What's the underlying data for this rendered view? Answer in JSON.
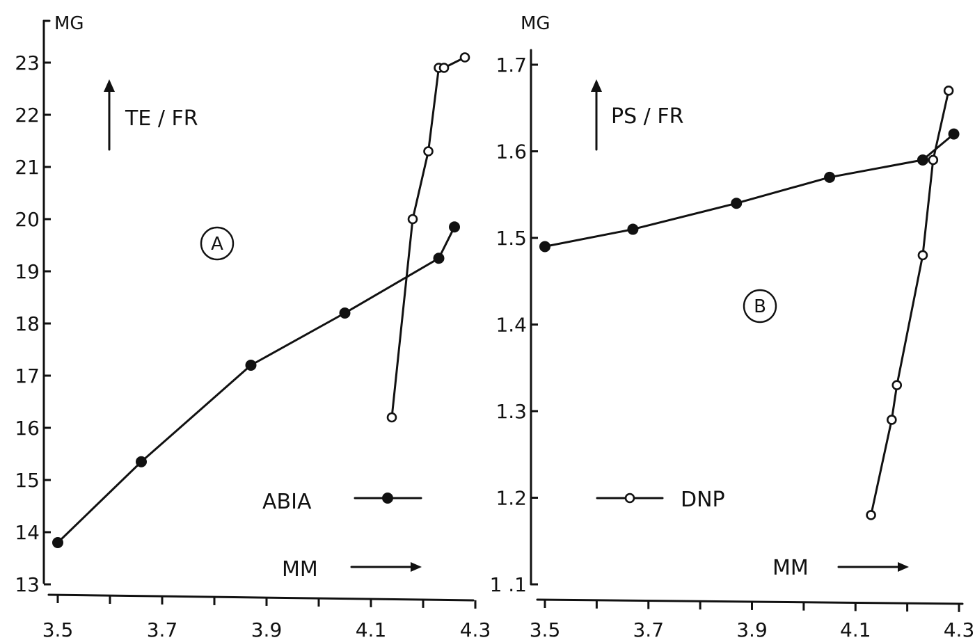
{
  "chart_data": [
    {
      "type": "line",
      "panel_label": "A",
      "y_unit_label": "MG",
      "ratio_label": "TE / FR",
      "x_arrow_label": "MM",
      "xlim": [
        3.5,
        4.3
      ],
      "ylim": [
        13,
        23
      ],
      "x_ticks": [
        3.5,
        3.6,
        3.7,
        3.8,
        3.9,
        4.0,
        4.1,
        4.2,
        4.3
      ],
      "x_tick_labels": [
        "3.5",
        "",
        "3.7",
        "",
        "3.9",
        "",
        "4.1",
        "",
        "4.3"
      ],
      "y_ticks": [
        13,
        14,
        15,
        16,
        17,
        18,
        19,
        20,
        21,
        22,
        23
      ],
      "y_tick_labels": [
        "13",
        "14",
        "15",
        "16",
        "17",
        "18",
        "19",
        "20",
        "21",
        "22",
        "23"
      ],
      "legend": {
        "label": "ABIA",
        "marker": "filled",
        "position": "lower-right"
      },
      "series": [
        {
          "name": "ABIA",
          "marker": "filled",
          "x": [
            3.5,
            3.66,
            3.87,
            4.05,
            4.23,
            4.26
          ],
          "y": [
            13.8,
            15.35,
            17.2,
            18.2,
            19.25,
            19.85
          ]
        },
        {
          "marker": "open",
          "x": [
            4.14,
            4.18,
            4.21,
            4.23,
            4.24,
            4.28
          ],
          "y": [
            16.2,
            20.0,
            21.3,
            22.9,
            22.9,
            23.1
          ]
        }
      ]
    },
    {
      "type": "line",
      "panel_label": "B",
      "y_unit_label": "MG",
      "ratio_label": "PS / FR",
      "x_arrow_label": "MM",
      "xlim": [
        3.5,
        4.3
      ],
      "ylim": [
        1.1,
        1.7
      ],
      "x_ticks": [
        3.5,
        3.6,
        3.7,
        3.8,
        3.9,
        4.0,
        4.1,
        4.2,
        4.3
      ],
      "x_tick_labels": [
        "3.5",
        "",
        "3.7",
        "",
        "3.9",
        "",
        "4.1",
        "",
        "4.3"
      ],
      "y_ticks": [
        1.1,
        1.2,
        1.3,
        1.4,
        1.5,
        1.6,
        1.7
      ],
      "y_tick_labels": [
        "1 .1",
        "1.2",
        "1.3",
        "1.4",
        "1.5",
        "1.6",
        "1.7"
      ],
      "legend": {
        "label": "DNP",
        "marker": "open",
        "position": "lower-left"
      },
      "series": [
        {
          "marker": "filled",
          "x": [
            3.5,
            3.67,
            3.87,
            4.05,
            4.23,
            4.29
          ],
          "y": [
            1.49,
            1.51,
            1.54,
            1.57,
            1.59,
            1.62
          ]
        },
        {
          "name": "DNP",
          "marker": "open",
          "x": [
            4.13,
            4.17,
            4.18,
            4.23,
            4.25,
            4.28
          ],
          "y": [
            1.18,
            1.29,
            1.33,
            1.48,
            1.59,
            1.67
          ]
        }
      ]
    }
  ]
}
